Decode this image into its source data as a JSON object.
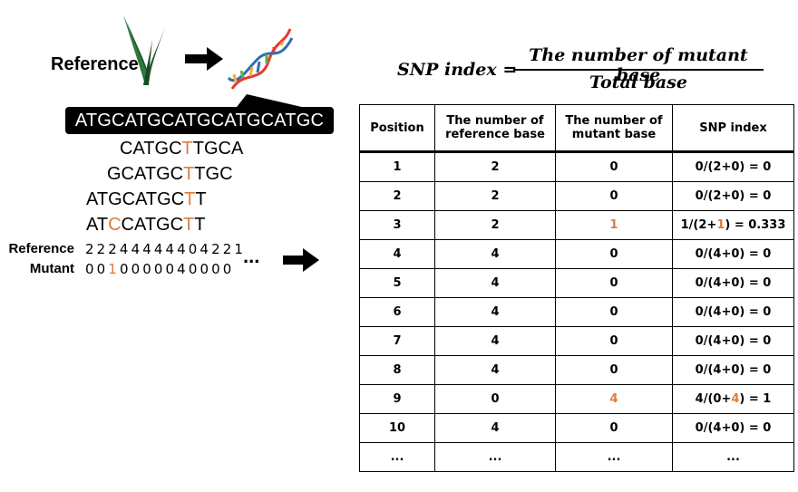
{
  "header": {
    "reference_label": "Reference"
  },
  "reference_sequence": "ATGCATGCATGCATGCATGC",
  "reads": [
    {
      "pre": "CATGC",
      "mut": "T",
      "post": "TGCA"
    },
    {
      "pre": "GCATGC",
      "mut": "T",
      "post": "TGC"
    },
    {
      "pre": "ATGCATGC",
      "mut": "T",
      "post": "T"
    },
    {
      "pre": "AT",
      "mut": "C",
      "mid": "CATGC",
      "mut2": "T",
      "post": "T"
    }
  ],
  "counts": {
    "reference_label": "Reference",
    "mutant_label": "Mutant",
    "reference_digits": "22244444404221",
    "mutant_a": "00",
    "mutant_b": "1",
    "mutant_c": "000004",
    "mutant_d": "0000",
    "ellipsis": "..."
  },
  "formula": {
    "lhs": "SNP index =",
    "numerator": "The number of mutant base",
    "denominator": "Total base"
  },
  "table": {
    "headers": [
      "Position",
      "The number of reference base",
      "The number of mutant base",
      "SNP index"
    ],
    "rows": [
      {
        "pos": "1",
        "ref": "2",
        "mut": "0",
        "idx_a": "0/(2+0) = 0"
      },
      {
        "pos": "2",
        "ref": "2",
        "mut": "0",
        "idx_a": "0/(2+0) = 0"
      },
      {
        "pos": "3",
        "ref": "2",
        "mut": "1",
        "idx_a": "1/(2+",
        "idx_b": "1",
        "idx_c": ") = 0.333"
      },
      {
        "pos": "4",
        "ref": "4",
        "mut": "0",
        "idx_a": "0/(4+0) = 0"
      },
      {
        "pos": "5",
        "ref": "4",
        "mut": "0",
        "idx_a": "0/(4+0) = 0"
      },
      {
        "pos": "6",
        "ref": "4",
        "mut": "0",
        "idx_a": "0/(4+0) = 0"
      },
      {
        "pos": "7",
        "ref": "4",
        "mut": "0",
        "idx_a": "0/(4+0) = 0"
      },
      {
        "pos": "8",
        "ref": "4",
        "mut": "0",
        "idx_a": "0/(4+0) = 0"
      },
      {
        "pos": "9",
        "ref": "0",
        "mut": "4",
        "idx_a": "4/(0+",
        "idx_b": "4",
        "idx_c": ") = 1"
      },
      {
        "pos": "10",
        "ref": "4",
        "mut": "0",
        "idx_a": "0/(4+0) = 0"
      },
      {
        "pos": "...",
        "ref": "...",
        "mut": "...",
        "idx_a": "..."
      }
    ]
  },
  "colors": {
    "mutant": "#e07b39",
    "plant": "#1f5a2c",
    "black": "#000000"
  },
  "icons": [
    "plant-icon",
    "arrow-right-icon",
    "dna-helix-icon"
  ]
}
